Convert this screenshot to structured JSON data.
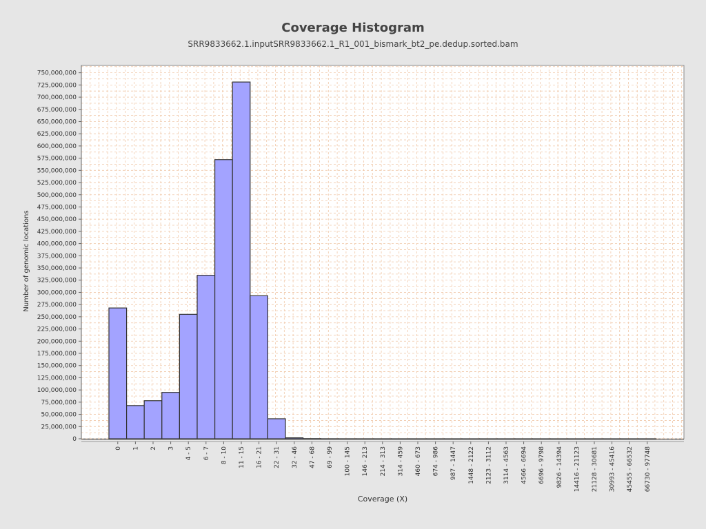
{
  "chart_data": {
    "type": "bar",
    "title": "Coverage Histogram",
    "subtitle": "SRR9833662.1.inputSRR9833662.1_R1_001_bismark_bt2_pe.dedup.sorted.bam",
    "xlabel": "Coverage (X)",
    "ylabel": "Number of genomic locations",
    "ylim": [
      0,
      765000000
    ],
    "grid": true,
    "yticks": [
      0,
      25000000,
      50000000,
      75000000,
      100000000,
      125000000,
      150000000,
      175000000,
      200000000,
      225000000,
      250000000,
      275000000,
      300000000,
      325000000,
      350000000,
      375000000,
      400000000,
      425000000,
      450000000,
      475000000,
      500000000,
      525000000,
      550000000,
      575000000,
      600000000,
      625000000,
      650000000,
      675000000,
      700000000,
      725000000,
      750000000
    ],
    "ytick_labels": [
      "0",
      "25,000,000",
      "50,000,000",
      "75,000,000",
      "100,000,000",
      "125,000,000",
      "150,000,000",
      "175,000,000",
      "200,000,000",
      "225,000,000",
      "250,000,000",
      "275,000,000",
      "300,000,000",
      "325,000,000",
      "350,000,000",
      "375,000,000",
      "400,000,000",
      "425,000,000",
      "450,000,000",
      "475,000,000",
      "500,000,000",
      "525,000,000",
      "550,000,000",
      "575,000,000",
      "600,000,000",
      "625,000,000",
      "650,000,000",
      "675,000,000",
      "700,000,000",
      "725,000,000",
      "750,000,000"
    ],
    "categories": [
      "0",
      "1",
      "2",
      "3",
      "4 - 5",
      "6 - 7",
      "8 - 10",
      "11 - 15",
      "16 - 21",
      "22 - 31",
      "32 - 46",
      "47 - 68",
      "69 - 99",
      "100 - 145",
      "146 - 213",
      "214 - 313",
      "314 - 459",
      "460 - 673",
      "674 - 986",
      "987 - 1447",
      "1448 - 2122",
      "2123 - 3112",
      "3114 - 4563",
      "4566 - 6694",
      "6696 - 9798",
      "9826 - 14394",
      "14416 - 21123",
      "21128 - 30681",
      "30993 - 45416",
      "45455 - 66532",
      "66730 - 97748"
    ],
    "values": [
      268000000,
      68000000,
      78000000,
      95000000,
      255000000,
      335000000,
      572000000,
      731000000,
      293000000,
      41000000,
      2000000,
      300000,
      100000,
      50000,
      30000,
      20000,
      10000,
      8000,
      5000,
      4000,
      3000,
      2000,
      1500,
      1000,
      800,
      600,
      400,
      300,
      200,
      100,
      50
    ],
    "colors": {
      "bar_fill": "#a3a3ff",
      "bar_stroke": "#333333",
      "grid": "#f0c8a8",
      "plot_bg": "#ffffff",
      "page_bg": "#e6e6e6"
    }
  }
}
